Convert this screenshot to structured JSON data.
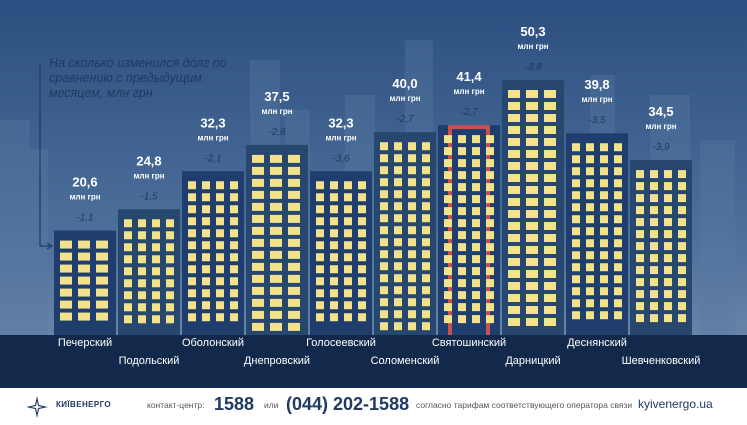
{
  "chart_data": {
    "type": "bar",
    "title": "На сколько изменился долг по сравнению с предыдущим месяцем, млн грн",
    "unit": "млн грн",
    "categories": [
      "Печерский",
      "Подольский",
      "Оболонский",
      "Днепровский",
      "Голосеевский",
      "Соломенский",
      "Святошинский",
      "Дарницкий",
      "Деснянский",
      "Шевченковский"
    ],
    "series": [
      {
        "values": [
          20.6,
          24.8,
          32.3,
          37.5,
          32.3,
          40.0,
          41.4,
          50.3,
          39.8,
          34.5
        ]
      }
    ],
    "value_labels": [
      "20,6",
      "24,8",
      "32,3",
      "37,5",
      "32,3",
      "40,0",
      "41,4",
      "50,3",
      "39,8",
      "34,5"
    ],
    "change_labels": [
      "-1,1",
      "-1,5",
      "-2,1",
      "-2,8",
      "-3,6",
      "-2,7",
      "-2,7",
      "-3,8",
      "-3,5",
      "-3,9"
    ],
    "ylim": [
      0,
      55
    ],
    "colors": {
      "window": "#f3e28c",
      "building": "#1f3e6d",
      "building_alt": "#27476f",
      "hit": "#2e5d8f",
      "street": "#12294b",
      "accent": "#d9534f",
      "label": "#ffffff",
      "change": "#1f3a63"
    }
  },
  "footer": {
    "logo_text": "КИЇВЕНЕРГО",
    "contact_label": "контакт-центр:",
    "phone_short": "1588",
    "or": "или",
    "phone_long": "(044) 202-1588",
    "tariff_note": "согласно тарифам соответствующего оператора связи",
    "website": "kyivenergo.ua"
  }
}
